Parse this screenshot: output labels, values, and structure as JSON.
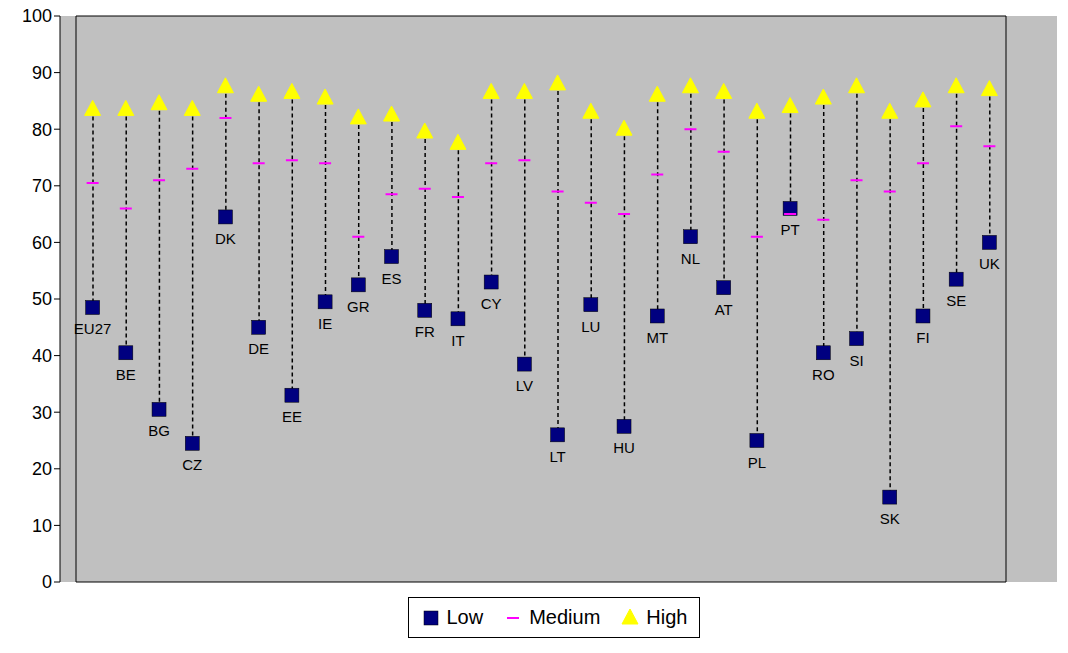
{
  "chart_data": {
    "type": "scatter",
    "categories": [
      "EU27",
      "BE",
      "BG",
      "CZ",
      "DK",
      "DE",
      "EE",
      "IE",
      "GR",
      "ES",
      "FR",
      "IT",
      "CY",
      "LV",
      "LT",
      "LU",
      "HU",
      "MT",
      "NL",
      "AT",
      "PL",
      "PT",
      "RO",
      "SI",
      "SK",
      "FI",
      "SE",
      "UK"
    ],
    "series": [
      {
        "name": "Low",
        "color": "#000080",
        "marker": "square",
        "values": [
          48.5,
          40.5,
          30.5,
          24.5,
          64.5,
          45,
          33,
          49.5,
          52.5,
          57.5,
          48,
          46.5,
          53,
          38.5,
          26,
          49,
          27.5,
          47,
          61,
          52,
          25,
          66,
          40.5,
          43,
          15,
          47,
          53.5,
          60
        ]
      },
      {
        "name": "Medium",
        "color": "#ff00ff",
        "marker": "dash",
        "values": [
          70.5,
          66,
          71,
          73,
          82,
          74,
          74.5,
          74,
          61,
          68.5,
          69.5,
          68,
          74,
          74.5,
          69,
          67,
          65,
          72,
          80,
          76,
          61,
          65,
          64,
          71,
          69,
          74,
          80.5,
          77
        ]
      },
      {
        "name": "High",
        "color": "#ffff00",
        "marker": "triangle",
        "values": [
          83.5,
          83.5,
          84.5,
          83.5,
          87.5,
          86,
          86.5,
          85.5,
          82,
          82.5,
          79.5,
          77.5,
          86.5,
          86.5,
          88,
          83,
          80,
          86,
          87.5,
          86.5,
          83,
          84,
          85.5,
          87.5,
          83,
          85,
          87.5,
          87
        ]
      }
    ],
    "ylim": [
      0,
      100
    ],
    "yticks": [
      0,
      10,
      20,
      30,
      40,
      50,
      60,
      70,
      80,
      90,
      100
    ],
    "grid": false,
    "legend": "bottom",
    "tick_labels": "y"
  }
}
